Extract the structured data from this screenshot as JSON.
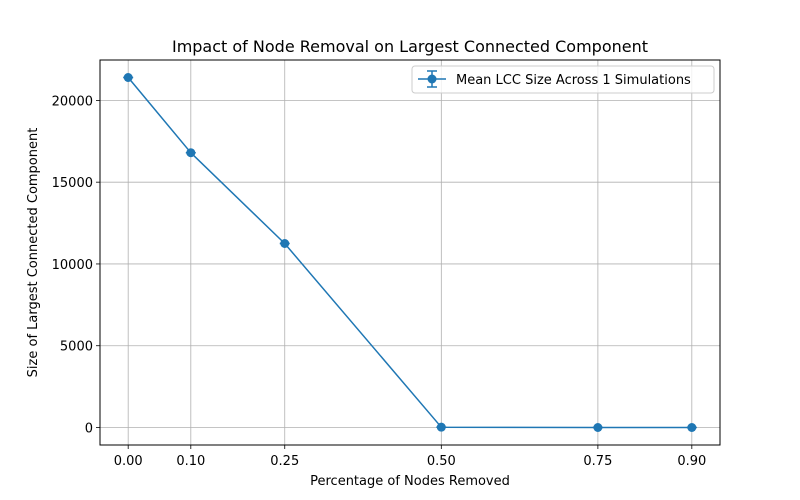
{
  "chart_data": {
    "type": "line",
    "title": "Impact of Node Removal on Largest Connected Component",
    "xlabel": "Percentage of Nodes Removed",
    "ylabel": "Size of Largest Connected Component",
    "x_ticks": [
      "0.00",
      "0.10",
      "0.25",
      "0.50",
      "0.75",
      "0.90"
    ],
    "y_ticks": [
      "0",
      "5000",
      "10000",
      "15000",
      "20000"
    ],
    "xlim": [
      -0.045,
      0.945
    ],
    "ylim": [
      -1070,
      22470
    ],
    "grid": true,
    "legend_position": "top-right",
    "series": [
      {
        "name": "Mean LCC Size Across 1 Simulations",
        "color": "#1f77b4",
        "marker": "circle",
        "error_bars": true,
        "x": [
          0.0,
          0.1,
          0.25,
          0.5,
          0.75,
          0.9
        ],
        "y": [
          21400,
          16800,
          11250,
          20,
          0,
          0
        ]
      }
    ]
  }
}
